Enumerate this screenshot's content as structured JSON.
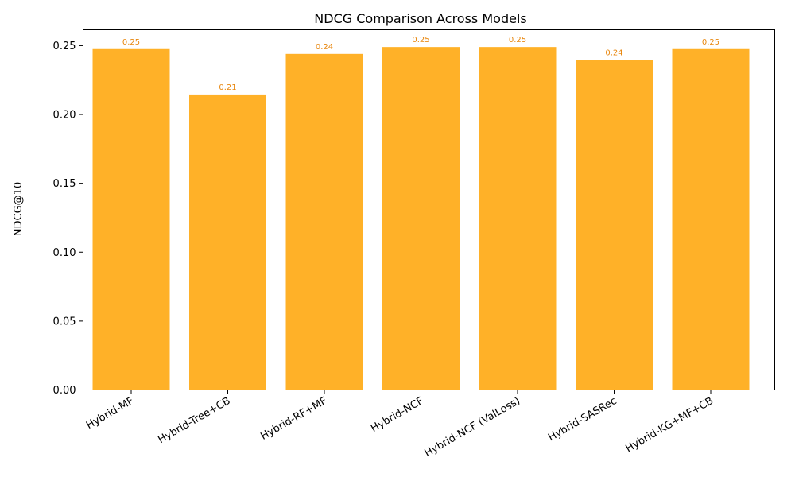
{
  "chart_data": {
    "type": "bar",
    "title": "NDCG Comparison Across Models",
    "xlabel": "",
    "ylabel": "NDCG@10",
    "categories": [
      "Hybrid-MF",
      "Hybrid-Tree+CB",
      "Hybrid-RF+MF",
      "Hybrid-NCF",
      "Hybrid-NCF (ValLoss)",
      "Hybrid-SASRec",
      "Hybrid-KG+MF+CB"
    ],
    "values": [
      0.2475,
      0.2145,
      0.244,
      0.249,
      0.249,
      0.2395,
      0.2475
    ],
    "data_labels": [
      "0.25",
      "0.21",
      "0.24",
      "0.25",
      "0.25",
      "0.24",
      "0.25"
    ],
    "y_ticks": [
      0.0,
      0.05,
      0.1,
      0.15,
      0.2,
      0.25
    ],
    "y_tick_labels": [
      "0.00",
      "0.05",
      "0.10",
      "0.15",
      "0.20",
      "0.25"
    ],
    "ylim": [
      0,
      0.2615
    ],
    "grid": false,
    "bar_color": "#FFB128",
    "label_color": "#E8870F"
  }
}
